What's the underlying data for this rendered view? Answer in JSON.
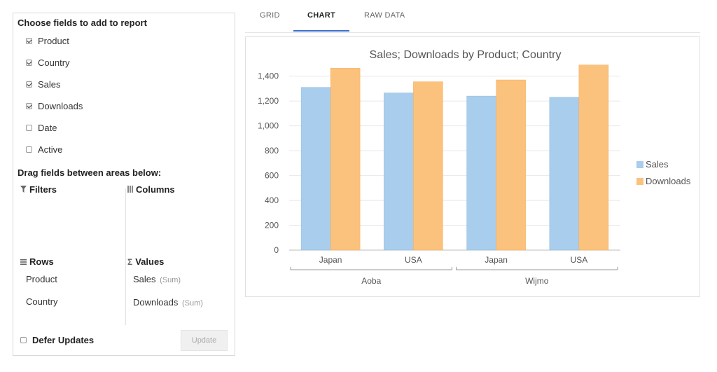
{
  "fields_panel": {
    "title": "Choose fields to add to report",
    "fields": [
      {
        "label": "Product",
        "checked": true
      },
      {
        "label": "Country",
        "checked": true
      },
      {
        "label": "Sales",
        "checked": true
      },
      {
        "label": "Downloads",
        "checked": true
      },
      {
        "label": "Date",
        "checked": false
      },
      {
        "label": "Active",
        "checked": false
      }
    ],
    "drag_title": "Drag fields between areas below:",
    "areas": {
      "filters": {
        "label": "Filters",
        "icon": "filter-icon"
      },
      "columns": {
        "label": "Columns",
        "icon": "columns-icon"
      },
      "rows": {
        "label": "Rows",
        "icon": "rows-icon",
        "items": [
          "Product",
          "Country"
        ]
      },
      "values": {
        "label": "Values",
        "icon": "sigma-icon",
        "items": [
          {
            "label": "Sales",
            "agg": "(Sum)"
          },
          {
            "label": "Downloads",
            "agg": "(Sum)"
          }
        ]
      }
    },
    "defer_updates": {
      "label": "Defer Updates",
      "checked": false
    },
    "update_button": "Update"
  },
  "tabs": [
    {
      "label": "GRID",
      "active": false
    },
    {
      "label": "CHART",
      "active": true
    },
    {
      "label": "RAW DATA",
      "active": false
    }
  ],
  "colors": {
    "sales": "#a9cdec",
    "downloads": "#fbc27d",
    "tab_accent": "#3b6fcf",
    "axis_text": "#555555"
  },
  "chart_data": {
    "type": "bar",
    "title": "Sales; Downloads by Product; Country",
    "categories": [
      "Japan",
      "USA",
      "Japan",
      "USA"
    ],
    "groups": [
      {
        "label": "Aoba",
        "categories": [
          "Japan",
          "USA"
        ]
      },
      {
        "label": "Wijmo",
        "categories": [
          "Japan",
          "USA"
        ]
      }
    ],
    "series": [
      {
        "name": "Sales",
        "values": [
          1310,
          1265,
          1240,
          1230
        ]
      },
      {
        "name": "Downloads",
        "values": [
          1465,
          1355,
          1370,
          1490
        ]
      }
    ],
    "y_ticks": [
      "0",
      "200",
      "400",
      "600",
      "800",
      "1,000",
      "1,200",
      "1,400"
    ],
    "ylim": [
      0,
      1500
    ],
    "grid": true,
    "legend_position": "right"
  }
}
